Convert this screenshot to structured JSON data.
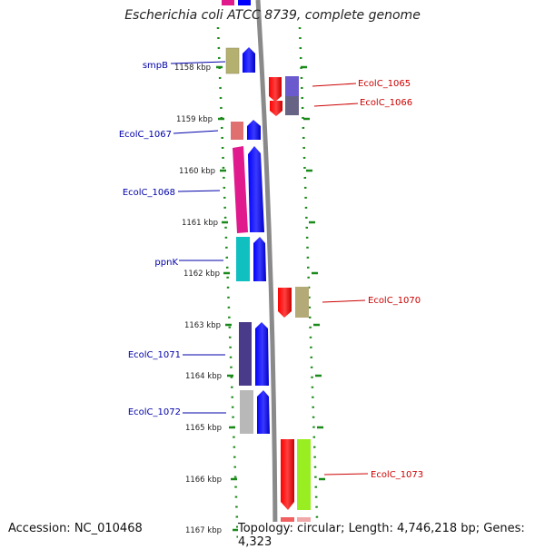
{
  "title": "Escherichia coli ATCC 8739, complete genome",
  "accession": "Accession: NC_010468",
  "topology": "Topology: circular; Length: 4,746,218 bp; Genes: 4,323",
  "kbp_ticks": [
    {
      "label": "1158 kbp"
    },
    {
      "label": "1159 kbp"
    },
    {
      "label": "1160 kbp"
    },
    {
      "label": "1161 kbp"
    },
    {
      "label": "1162 kbp"
    },
    {
      "label": "1163 kbp"
    },
    {
      "label": "1164 kbp"
    },
    {
      "label": "1165 kbp"
    },
    {
      "label": "1166 kbp"
    },
    {
      "label": "1167 kbp"
    }
  ],
  "left_genes": [
    {
      "name": "smpB",
      "color": "#b4b070"
    },
    {
      "name": "EcolC_1067",
      "color": "#e07070"
    },
    {
      "name": "EcolC_1068",
      "color": "#e0198c"
    },
    {
      "name": "ppnK",
      "color": "#10c0c0"
    },
    {
      "name": "EcolC_1071",
      "color": "#4a3a8a"
    },
    {
      "name": "EcolC_1072",
      "color": "#b8b8b8"
    }
  ],
  "right_genes": [
    {
      "name": "EcolC_1065",
      "color": "#ee0000"
    },
    {
      "name": "EcolC_1066",
      "color": "#6a5acd"
    },
    {
      "name": "EcolC_1070",
      "color": "#b4aa78"
    },
    {
      "name": "EcolC_1073",
      "color": "#99ee22"
    }
  ]
}
